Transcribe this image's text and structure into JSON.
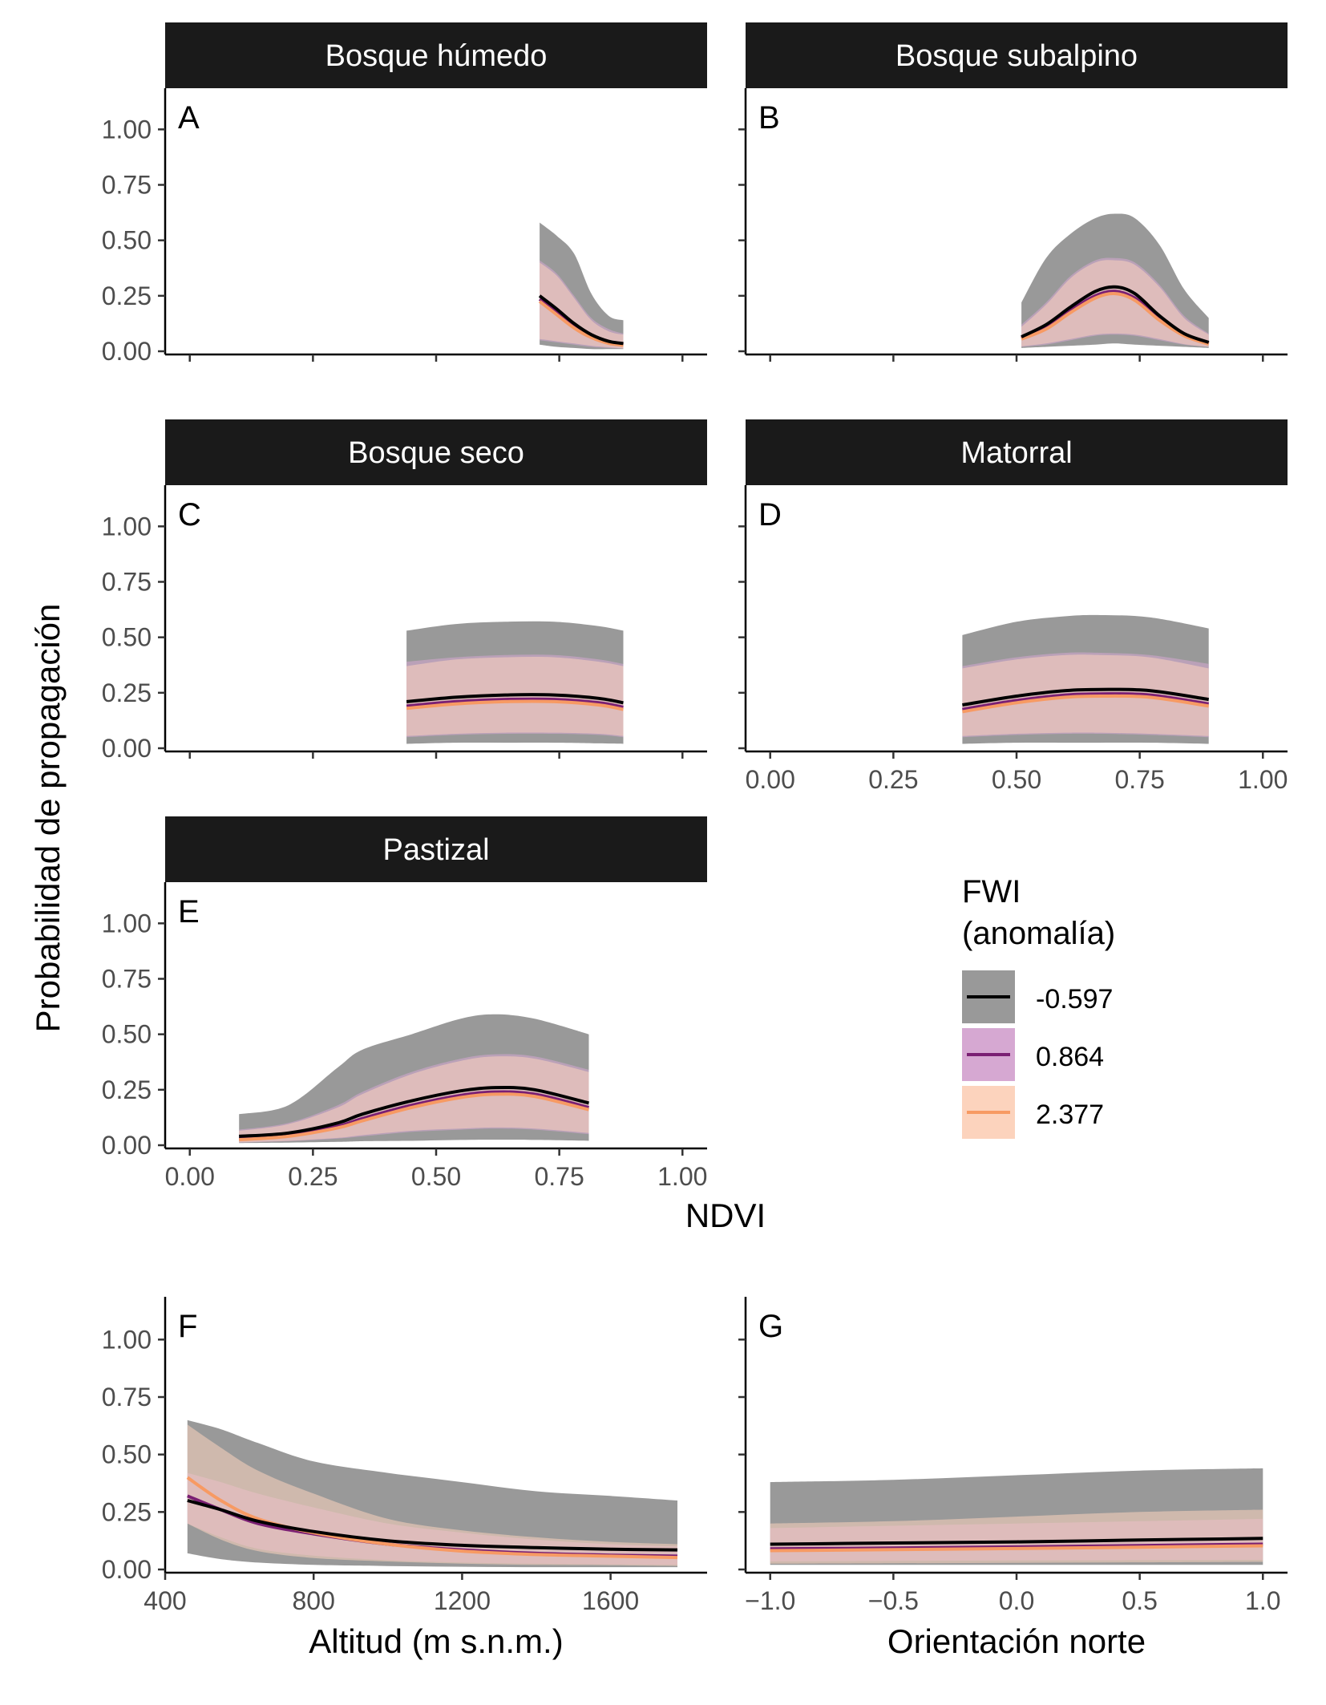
{
  "figure": {
    "ylabel": "Probabilidad de propagación",
    "ndvi_xlabel": "NDVI",
    "legend": {
      "title_lines": [
        "FWI",
        "(anomalía)"
      ],
      "items": [
        {
          "label": "-0.597",
          "line": "#000000",
          "fill": "#999999"
        },
        {
          "label": "0.864",
          "line": "#7a1f73",
          "fill": "#d6a8d2"
        },
        {
          "label": "2.377",
          "line": "#f79a63",
          "fill": "#fcd3bd"
        }
      ]
    }
  },
  "chart_data": [
    {
      "type": "area",
      "strip": "Bosque húmedo",
      "tag": "A",
      "xlim": [
        -0.05,
        1.05
      ],
      "ylim": [
        0,
        1
      ],
      "xticks": [
        "",
        "",
        "",
        "",
        ""
      ],
      "xtick_values": [
        0,
        0.25,
        0.5,
        0.75,
        1.0
      ],
      "yticks": [
        "0.00",
        "0.25",
        "0.50",
        "0.75",
        "1.00"
      ],
      "ytick_values": [
        0,
        0.25,
        0.5,
        0.75,
        1.0
      ],
      "x": [
        0.71,
        0.745,
        0.78,
        0.815,
        0.85,
        0.88
      ],
      "series": [
        {
          "name": "-0.597",
          "y": [
            0.25,
            0.19,
            0.125,
            0.075,
            0.045,
            0.035
          ],
          "lo": [
            0.03,
            0.02,
            0.015,
            0.01,
            0.01,
            0.01
          ],
          "hi": [
            0.58,
            0.52,
            0.44,
            0.26,
            0.16,
            0.14
          ]
        },
        {
          "name": "0.864",
          "y": [
            0.235,
            0.175,
            0.115,
            0.068,
            0.04,
            0.03
          ],
          "lo": [
            0.05,
            0.04,
            0.03,
            0.02,
            0.015,
            0.012
          ],
          "hi": [
            0.41,
            0.35,
            0.25,
            0.15,
            0.1,
            0.08
          ]
        },
        {
          "name": "2.377",
          "y": [
            0.225,
            0.165,
            0.105,
            0.062,
            0.036,
            0.027
          ],
          "lo": [
            0.055,
            0.045,
            0.035,
            0.025,
            0.018,
            0.013
          ],
          "hi": [
            0.4,
            0.34,
            0.24,
            0.14,
            0.09,
            0.075
          ]
        }
      ]
    },
    {
      "type": "area",
      "strip": "Bosque subalpino",
      "tag": "B",
      "xlim": [
        -0.05,
        1.05
      ],
      "ylim": [
        0,
        1
      ],
      "xticks": [
        "",
        "",
        "",
        "",
        ""
      ],
      "xtick_values": [
        0,
        0.25,
        0.5,
        0.75,
        1.0
      ],
      "yticks": [
        "",
        "",
        "",
        "",
        ""
      ],
      "ytick_values": [
        0,
        0.25,
        0.5,
        0.75,
        1.0
      ],
      "x": [
        0.51,
        0.56,
        0.61,
        0.66,
        0.7,
        0.74,
        0.79,
        0.84,
        0.89
      ],
      "series": [
        {
          "name": "-0.597",
          "y": [
            0.065,
            0.12,
            0.2,
            0.27,
            0.29,
            0.26,
            0.16,
            0.08,
            0.04
          ],
          "lo": [
            0.015,
            0.02,
            0.025,
            0.03,
            0.035,
            0.03,
            0.025,
            0.02,
            0.015
          ],
          "hi": [
            0.22,
            0.42,
            0.53,
            0.6,
            0.62,
            0.6,
            0.48,
            0.28,
            0.15
          ]
        },
        {
          "name": "0.864",
          "y": [
            0.06,
            0.11,
            0.185,
            0.25,
            0.27,
            0.24,
            0.15,
            0.075,
            0.035
          ],
          "lo": [
            0.02,
            0.03,
            0.05,
            0.07,
            0.075,
            0.07,
            0.05,
            0.03,
            0.02
          ],
          "hi": [
            0.12,
            0.22,
            0.34,
            0.41,
            0.42,
            0.4,
            0.3,
            0.16,
            0.08
          ]
        },
        {
          "name": "2.377",
          "y": [
            0.055,
            0.1,
            0.175,
            0.24,
            0.26,
            0.23,
            0.14,
            0.07,
            0.032
          ],
          "lo": [
            0.022,
            0.035,
            0.055,
            0.075,
            0.08,
            0.075,
            0.055,
            0.032,
            0.02
          ],
          "hi": [
            0.11,
            0.21,
            0.33,
            0.4,
            0.41,
            0.39,
            0.29,
            0.15,
            0.075
          ]
        }
      ]
    },
    {
      "type": "area",
      "strip": "Bosque seco",
      "tag": "C",
      "xlim": [
        -0.05,
        1.05
      ],
      "ylim": [
        0,
        1
      ],
      "xticks": [
        "",
        "",
        "",
        "",
        ""
      ],
      "xtick_values": [
        0,
        0.25,
        0.5,
        0.75,
        1.0
      ],
      "yticks": [
        "0.00",
        "0.25",
        "0.50",
        "0.75",
        "1.00"
      ],
      "ytick_values": [
        0,
        0.25,
        0.5,
        0.75,
        1.0
      ],
      "x": [
        0.44,
        0.54,
        0.64,
        0.74,
        0.83,
        0.88
      ],
      "series": [
        {
          "name": "-0.597",
          "y": [
            0.21,
            0.23,
            0.24,
            0.24,
            0.225,
            0.205
          ],
          "lo": [
            0.02,
            0.025,
            0.025,
            0.025,
            0.022,
            0.02
          ],
          "hi": [
            0.53,
            0.56,
            0.57,
            0.57,
            0.55,
            0.53
          ]
        },
        {
          "name": "0.864",
          "y": [
            0.19,
            0.21,
            0.22,
            0.22,
            0.205,
            0.185
          ],
          "lo": [
            0.05,
            0.06,
            0.065,
            0.065,
            0.06,
            0.05
          ],
          "hi": [
            0.39,
            0.41,
            0.42,
            0.42,
            0.4,
            0.38
          ]
        },
        {
          "name": "2.377",
          "y": [
            0.18,
            0.2,
            0.21,
            0.21,
            0.195,
            0.175
          ],
          "lo": [
            0.055,
            0.065,
            0.07,
            0.07,
            0.065,
            0.055
          ],
          "hi": [
            0.37,
            0.4,
            0.41,
            0.41,
            0.39,
            0.37
          ]
        }
      ]
    },
    {
      "type": "area",
      "strip": "Matorral",
      "tag": "D",
      "xlim": [
        -0.05,
        1.05
      ],
      "ylim": [
        0,
        1
      ],
      "xticks": [
        "0.00",
        "0.25",
        "0.50",
        "0.75",
        "1.00"
      ],
      "xtick_values": [
        0,
        0.25,
        0.5,
        0.75,
        1.0
      ],
      "yticks": [
        "",
        "",
        "",
        "",
        ""
      ],
      "ytick_values": [
        0,
        0.25,
        0.5,
        0.75,
        1.0
      ],
      "x": [
        0.39,
        0.5,
        0.6,
        0.67,
        0.77,
        0.89
      ],
      "series": [
        {
          "name": "-0.597",
          "y": [
            0.195,
            0.235,
            0.26,
            0.265,
            0.26,
            0.22
          ],
          "lo": [
            0.02,
            0.025,
            0.025,
            0.025,
            0.025,
            0.02
          ],
          "hi": [
            0.51,
            0.57,
            0.595,
            0.6,
            0.59,
            0.54
          ]
        },
        {
          "name": "0.864",
          "y": [
            0.175,
            0.215,
            0.24,
            0.245,
            0.24,
            0.2
          ],
          "lo": [
            0.05,
            0.06,
            0.065,
            0.065,
            0.06,
            0.05
          ],
          "hi": [
            0.37,
            0.41,
            0.43,
            0.43,
            0.42,
            0.38
          ]
        },
        {
          "name": "2.377",
          "y": [
            0.165,
            0.205,
            0.23,
            0.235,
            0.23,
            0.19
          ],
          "lo": [
            0.055,
            0.065,
            0.07,
            0.07,
            0.065,
            0.055
          ],
          "hi": [
            0.36,
            0.4,
            0.42,
            0.42,
            0.41,
            0.36
          ]
        }
      ]
    },
    {
      "type": "area",
      "strip": "Pastizal",
      "tag": "E",
      "xlim": [
        -0.05,
        1.05
      ],
      "ylim": [
        0,
        1
      ],
      "xticks": [
        "0.00",
        "0.25",
        "0.50",
        "0.75",
        "1.00"
      ],
      "xtick_values": [
        0,
        0.25,
        0.5,
        0.75,
        1.0
      ],
      "yticks": [
        "0.00",
        "0.25",
        "0.50",
        "0.75",
        "1.00"
      ],
      "ytick_values": [
        0,
        0.25,
        0.5,
        0.75,
        1.0
      ],
      "x": [
        0.1,
        0.2,
        0.3,
        0.35,
        0.45,
        0.55,
        0.62,
        0.7,
        0.81
      ],
      "series": [
        {
          "name": "-0.597",
          "y": [
            0.04,
            0.055,
            0.1,
            0.14,
            0.2,
            0.245,
            0.26,
            0.25,
            0.19
          ],
          "lo": [
            0.01,
            0.012,
            0.015,
            0.018,
            0.02,
            0.024,
            0.025,
            0.024,
            0.02
          ],
          "hi": [
            0.14,
            0.18,
            0.35,
            0.43,
            0.5,
            0.57,
            0.59,
            0.57,
            0.5
          ]
        },
        {
          "name": "0.864",
          "y": [
            0.03,
            0.045,
            0.085,
            0.12,
            0.18,
            0.225,
            0.24,
            0.23,
            0.17
          ],
          "lo": [
            0.012,
            0.018,
            0.03,
            0.04,
            0.06,
            0.07,
            0.075,
            0.07,
            0.05
          ],
          "hi": [
            0.07,
            0.1,
            0.18,
            0.24,
            0.33,
            0.39,
            0.41,
            0.4,
            0.34
          ]
        },
        {
          "name": "2.377",
          "y": [
            0.025,
            0.04,
            0.078,
            0.11,
            0.17,
            0.215,
            0.23,
            0.22,
            0.16
          ],
          "lo": [
            0.013,
            0.02,
            0.033,
            0.045,
            0.065,
            0.075,
            0.08,
            0.075,
            0.055
          ],
          "hi": [
            0.065,
            0.095,
            0.17,
            0.23,
            0.32,
            0.38,
            0.4,
            0.39,
            0.33
          ]
        }
      ]
    },
    {
      "type": "area",
      "tag": "F",
      "xlabel": "Altitud (m s.n.m.)",
      "xlim": [
        400,
        1860
      ],
      "ylim": [
        0,
        1
      ],
      "xticks": [
        "400",
        "800",
        "1200",
        "1600"
      ],
      "xtick_values": [
        400,
        800,
        1200,
        1600
      ],
      "yticks": [
        "0.00",
        "0.25",
        "0.50",
        "0.75",
        "1.00"
      ],
      "ytick_values": [
        0,
        0.25,
        0.5,
        0.75,
        1.0
      ],
      "x": [
        460,
        550,
        650,
        800,
        1000,
        1200,
        1400,
        1600,
        1780
      ],
      "series": [
        {
          "name": "-0.597",
          "y": [
            0.3,
            0.26,
            0.21,
            0.165,
            0.125,
            0.105,
            0.095,
            0.088,
            0.085
          ],
          "lo": [
            0.07,
            0.045,
            0.03,
            0.02,
            0.015,
            0.012,
            0.01,
            0.01,
            0.01
          ],
          "hi": [
            0.65,
            0.61,
            0.55,
            0.47,
            0.42,
            0.38,
            0.34,
            0.32,
            0.3
          ]
        },
        {
          "name": "0.864",
          "y": [
            0.32,
            0.26,
            0.2,
            0.155,
            0.11,
            0.085,
            0.07,
            0.062,
            0.058
          ],
          "lo": [
            0.2,
            0.14,
            0.09,
            0.06,
            0.04,
            0.03,
            0.025,
            0.022,
            0.02
          ],
          "hi": [
            0.42,
            0.38,
            0.33,
            0.27,
            0.2,
            0.16,
            0.13,
            0.11,
            0.1
          ]
        },
        {
          "name": "2.377",
          "y": [
            0.4,
            0.3,
            0.22,
            0.16,
            0.11,
            0.08,
            0.065,
            0.058,
            0.052
          ],
          "lo": [
            0.2,
            0.13,
            0.08,
            0.05,
            0.035,
            0.025,
            0.02,
            0.018,
            0.015
          ],
          "hi": [
            0.63,
            0.53,
            0.43,
            0.33,
            0.22,
            0.17,
            0.14,
            0.12,
            0.11
          ]
        }
      ]
    },
    {
      "type": "area",
      "tag": "G",
      "xlabel": "Orientación norte",
      "xlim": [
        -1.1,
        1.1
      ],
      "ylim": [
        0,
        1
      ],
      "xticks": [
        "−1.0",
        "−0.5",
        "0.0",
        "0.5",
        "1.0"
      ],
      "xtick_values": [
        -1.0,
        -0.5,
        0.0,
        0.5,
        1.0
      ],
      "yticks": [
        "",
        "",
        "",
        "",
        ""
      ],
      "ytick_values": [
        0,
        0.25,
        0.5,
        0.75,
        1.0
      ],
      "x": [
        -1.0,
        -0.5,
        0.0,
        0.5,
        1.0
      ],
      "series": [
        {
          "name": "-0.597",
          "y": [
            0.11,
            0.115,
            0.12,
            0.128,
            0.135
          ],
          "lo": [
            0.02,
            0.02,
            0.02,
            0.02,
            0.02
          ],
          "hi": [
            0.38,
            0.39,
            0.41,
            0.43,
            0.44
          ]
        },
        {
          "name": "0.864",
          "y": [
            0.09,
            0.093,
            0.098,
            0.104,
            0.11
          ],
          "lo": [
            0.035,
            0.037,
            0.039,
            0.04,
            0.042
          ],
          "hi": [
            0.18,
            0.19,
            0.2,
            0.21,
            0.22
          ]
        },
        {
          "name": "2.377",
          "y": [
            0.082,
            0.086,
            0.091,
            0.097,
            0.103
          ],
          "lo": [
            0.025,
            0.027,
            0.029,
            0.031,
            0.033
          ],
          "hi": [
            0.2,
            0.21,
            0.23,
            0.25,
            0.26
          ]
        }
      ]
    }
  ]
}
